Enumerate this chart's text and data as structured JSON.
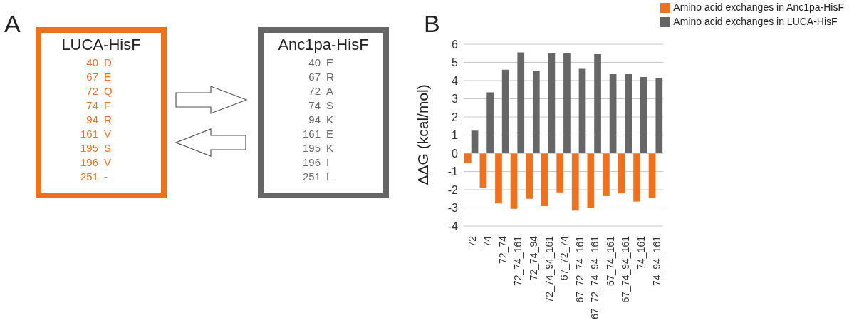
{
  "chart_data": [
    {
      "type": "other",
      "title": "LUCA-HisF",
      "color": "#ee7120",
      "annotations": [
        "A",
        "40 D",
        "67 E",
        "72 Q",
        "74 F",
        "94 R",
        "161 V",
        "195 S",
        "196 V",
        "251 -"
      ]
    },
    {
      "type": "other",
      "title": "Anc1pa-HisF",
      "color": "#666666",
      "annotations": [
        "40 E",
        "67 R",
        "72 A",
        "74 S",
        "94 K",
        "161 E",
        "195 K",
        "196 I",
        "251 L"
      ]
    },
    {
      "type": "bar",
      "ylabel": "ΔΔG (kcal/mol)",
      "annotations": [
        "B"
      ],
      "categories": [
        "72",
        "74",
        "72_74",
        "72_74_161",
        "72_74_94",
        "72_74_94_161",
        "67_72_74",
        "67_72_74_161",
        "67_72_74_94_161",
        "67_74_161",
        "67_74_94_161",
        "74_161",
        "74_94_161"
      ],
      "series": [
        {
          "name": "Amino acid exchanges in Anc1pa-HisF",
          "color": "#ee7120",
          "values": [
            -0.55,
            -1.9,
            -2.75,
            -3.05,
            -2.5,
            -2.9,
            -2.15,
            -3.15,
            -3.0,
            -2.35,
            -2.2,
            -2.65,
            -2.45
          ]
        },
        {
          "name": "Amino acid exchanges in LUCA-HisF",
          "color": "#666666",
          "values": [
            1.25,
            3.35,
            4.6,
            5.55,
            4.55,
            5.5,
            5.5,
            4.65,
            5.45,
            4.35,
            4.35,
            4.2,
            4.15
          ]
        }
      ],
      "ylim": [
        -4,
        6
      ],
      "yticks": [
        -4,
        -3,
        -2,
        -1,
        0,
        1,
        2,
        3,
        4,
        5,
        6
      ],
      "grid": "y",
      "legend": "top right"
    }
  ]
}
